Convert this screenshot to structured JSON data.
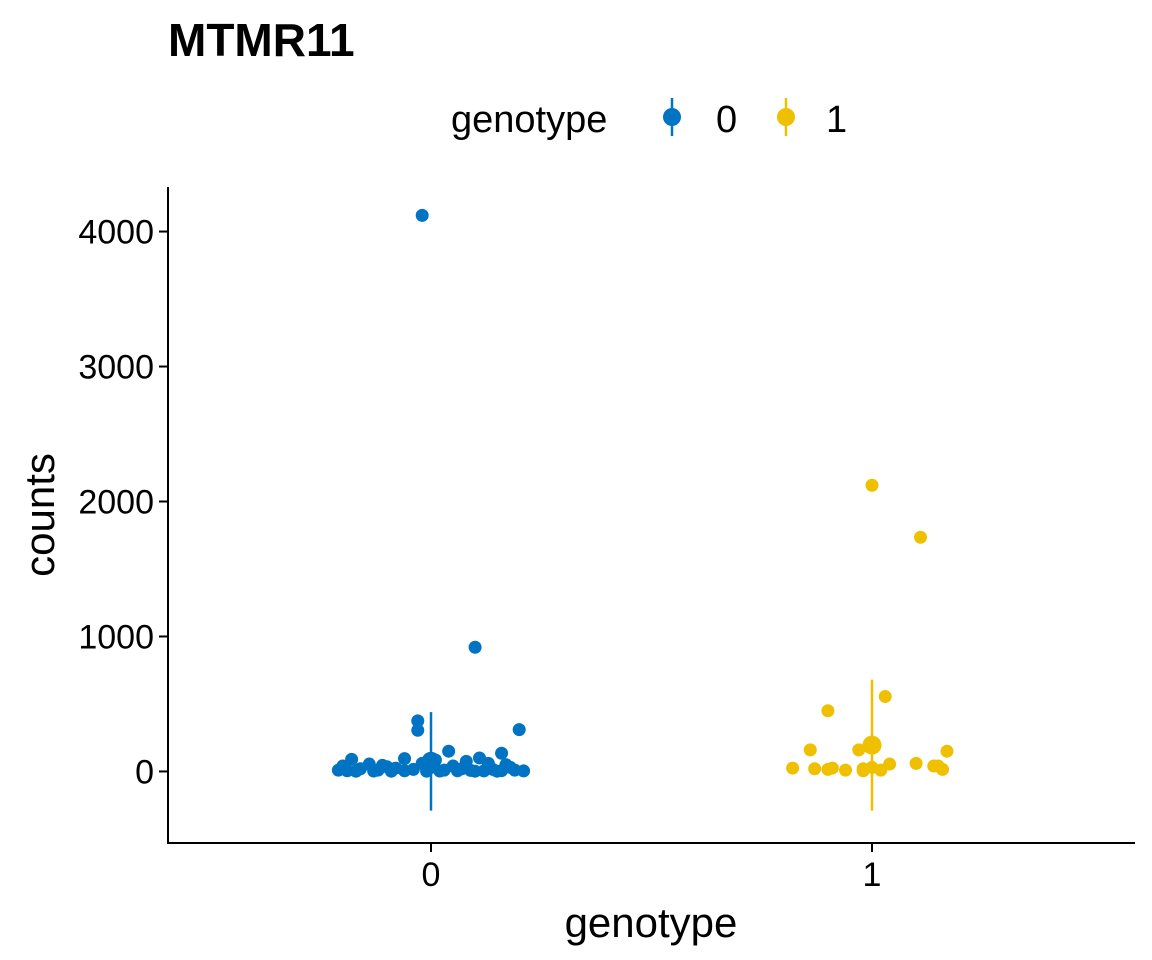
{
  "chart_data": {
    "type": "scatter",
    "title": "MTMR11",
    "xlabel": "genotype",
    "ylabel": "counts",
    "x_categories": [
      "0",
      "1"
    ],
    "yticks": [
      0,
      1000,
      2000,
      3000,
      4000
    ],
    "ylim": [
      -530,
      4330
    ],
    "legend": {
      "title": "genotype",
      "placement": "top",
      "entries": [
        {
          "label": "0",
          "color": "#0073C2"
        },
        {
          "label": "1",
          "color": "#EFC000"
        }
      ]
    },
    "series": [
      {
        "name": "0",
        "color": "#0073C2",
        "summary": {
          "mean": 75,
          "ymin": -290,
          "ymax": 440
        },
        "points": [
          {
            "x": -0.02,
            "y": 4120
          },
          {
            "x": 0.1,
            "y": 920
          },
          {
            "x": -0.03,
            "y": 375
          },
          {
            "x": -0.03,
            "y": 305
          },
          {
            "x": 0.2,
            "y": 310
          },
          {
            "x": 0.04,
            "y": 150
          },
          {
            "x": 0.16,
            "y": 135
          },
          {
            "x": 0.11,
            "y": 100
          },
          {
            "x": -0.18,
            "y": 90
          },
          {
            "x": -0.06,
            "y": 95
          },
          {
            "x": 0.01,
            "y": 85
          },
          {
            "x": 0.08,
            "y": 75
          },
          {
            "x": -0.14,
            "y": 55
          },
          {
            "x": 0.13,
            "y": 60
          },
          {
            "x": -0.2,
            "y": 40
          },
          {
            "x": -0.1,
            "y": 35
          },
          {
            "x": 0.05,
            "y": 40
          },
          {
            "x": 0.18,
            "y": 30
          },
          {
            "x": -0.16,
            "y": 20
          },
          {
            "x": -0.08,
            "y": 25
          },
          {
            "x": 0.0,
            "y": 30
          },
          {
            "x": 0.07,
            "y": 20
          },
          {
            "x": 0.14,
            "y": 15
          },
          {
            "x": -0.21,
            "y": 10
          },
          {
            "x": -0.12,
            "y": 10
          },
          {
            "x": -0.04,
            "y": 15
          },
          {
            "x": 0.03,
            "y": 10
          },
          {
            "x": 0.09,
            "y": 8
          },
          {
            "x": 0.19,
            "y": 10
          },
          {
            "x": -0.19,
            "y": 5
          },
          {
            "x": -0.13,
            "y": 3
          },
          {
            "x": -0.06,
            "y": 5
          },
          {
            "x": 0.02,
            "y": 3
          },
          {
            "x": 0.06,
            "y": 5
          },
          {
            "x": 0.12,
            "y": 4
          },
          {
            "x": 0.16,
            "y": 6
          },
          {
            "x": 0.21,
            "y": 4
          },
          {
            "x": -0.17,
            "y": 2
          },
          {
            "x": -0.09,
            "y": 2
          },
          {
            "x": -0.01,
            "y": 2
          },
          {
            "x": 0.1,
            "y": 2
          },
          {
            "x": 0.15,
            "y": 2
          },
          {
            "x": -0.11,
            "y": 45
          },
          {
            "x": 0.17,
            "y": 50
          },
          {
            "x": -0.02,
            "y": 60
          }
        ]
      },
      {
        "name": "1",
        "color": "#EFC000",
        "summary": {
          "mean": 195,
          "ymin": -290,
          "ymax": 680
        },
        "points": [
          {
            "x": 0.0,
            "y": 2120
          },
          {
            "x": 0.11,
            "y": 1735
          },
          {
            "x": 0.03,
            "y": 555
          },
          {
            "x": -0.1,
            "y": 450
          },
          {
            "x": -0.14,
            "y": 160
          },
          {
            "x": -0.03,
            "y": 160
          },
          {
            "x": 0.17,
            "y": 150
          },
          {
            "x": 0.04,
            "y": 55
          },
          {
            "x": 0.1,
            "y": 60
          },
          {
            "x": 0.14,
            "y": 40
          },
          {
            "x": -0.18,
            "y": 25
          },
          {
            "x": -0.13,
            "y": 20
          },
          {
            "x": -0.1,
            "y": 15
          },
          {
            "x": -0.09,
            "y": 25
          },
          {
            "x": -0.02,
            "y": 20
          },
          {
            "x": 0.0,
            "y": 30
          },
          {
            "x": 0.02,
            "y": 10
          },
          {
            "x": 0.16,
            "y": 15
          },
          {
            "x": -0.06,
            "y": 10
          },
          {
            "x": -0.02,
            "y": 5
          },
          {
            "x": 0.15,
            "y": 40
          }
        ]
      }
    ]
  }
}
